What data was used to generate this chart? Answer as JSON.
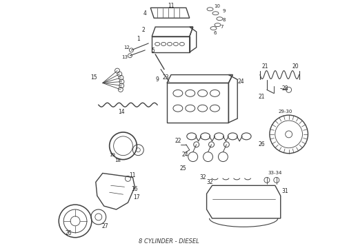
{
  "caption": "8 CYLINDER - DIESEL",
  "caption_fontsize": 6,
  "bg_color": "#ffffff",
  "line_color": "#404040",
  "figsize": [
    4.9,
    3.6
  ],
  "dpi": 100
}
